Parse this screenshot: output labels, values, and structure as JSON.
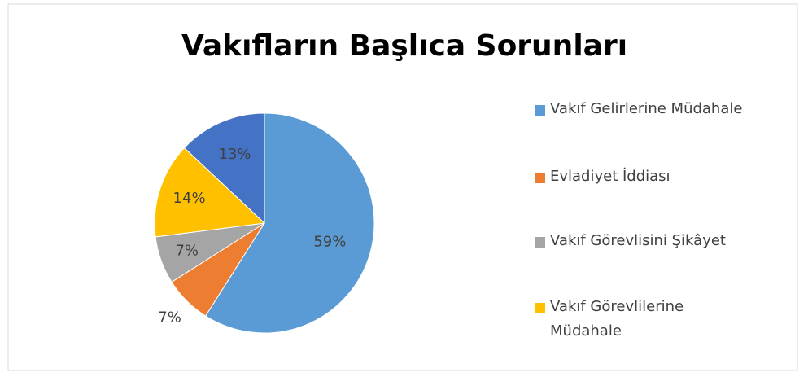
{
  "chart_data": {
    "type": "pie",
    "title": "Vakıfların Başlıca Sorunları",
    "categories": [
      "Vakıf Gelirlerine Müdahale",
      "Evladiyet İddiası",
      "Vakıf Görevlisini Şikâyet",
      "Vakıf Görevlilerine Müdahale",
      null
    ],
    "values": [
      59,
      7,
      7,
      14,
      13
    ],
    "value_labels": [
      "59%",
      "7%",
      "7%",
      "14%",
      "13%"
    ],
    "colors": [
      "#5b9bd5",
      "#ed7d31",
      "#a5a5a5",
      "#ffc000",
      "#4472c4"
    ],
    "legend": "right"
  }
}
